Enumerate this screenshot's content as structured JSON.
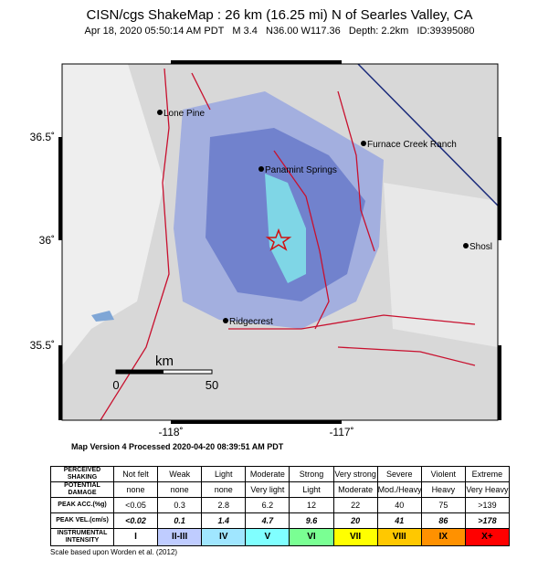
{
  "header": {
    "title": "CISN/cgs ShakeMap : 26 km (16.25 mi) N of Searles Valley, CA",
    "subtitle": "Apr 18, 2020 05:50:14 AM PDT   M 3.4   N36.00 W117.36   Depth: 2.2km   ID:39395080"
  },
  "map": {
    "lat_ticks": [
      "36.5˚",
      "36˚",
      "35.5˚"
    ],
    "lon_ticks": [
      "-118˚",
      "-117˚"
    ],
    "places": [
      "Lone Pine",
      "Furnace Creek Ranch",
      "Panamint Springs",
      "Ridgecrest",
      "Shosl"
    ],
    "scale_bar": {
      "unit": "km",
      "labels": [
        "0",
        "50"
      ]
    }
  },
  "version": "Map Version 4 Processed 2020-04-20 08:39:51 AM PDT",
  "table": {
    "row_headers": [
      "PERCEIVED SHAKING",
      "POTENTIAL DAMAGE",
      "PEAK ACC.(%g)",
      "PEAK VEL.(cm/s)",
      "INSTRUMENTAL INTENSITY"
    ],
    "rows": [
      [
        "Not felt",
        "Weak",
        "Light",
        "Moderate",
        "Strong",
        "Very strong",
        "Severe",
        "Violent",
        "Extreme"
      ],
      [
        "none",
        "none",
        "none",
        "Very light",
        "Light",
        "Moderate",
        "Mod./Heavy",
        "Heavy",
        "Very Heavy"
      ],
      [
        "<0.05",
        "0.3",
        "2.8",
        "6.2",
        "12",
        "22",
        "40",
        "75",
        ">139"
      ],
      [
        "<0.02",
        "0.1",
        "1.4",
        "4.7",
        "9.6",
        "20",
        "41",
        "86",
        ">178"
      ],
      [
        "I",
        "II-III",
        "IV",
        "V",
        "VI",
        "VII",
        "VIII",
        "IX",
        "X+"
      ]
    ],
    "intensity_colors": [
      "#ffffff",
      "#bfccff",
      "#a0e6ff",
      "#80ffff",
      "#7aff93",
      "#ffff00",
      "#ffc800",
      "#ff9100",
      "#ff0000"
    ]
  },
  "footnote": "Scale based upon Worden et al. (2012)"
}
